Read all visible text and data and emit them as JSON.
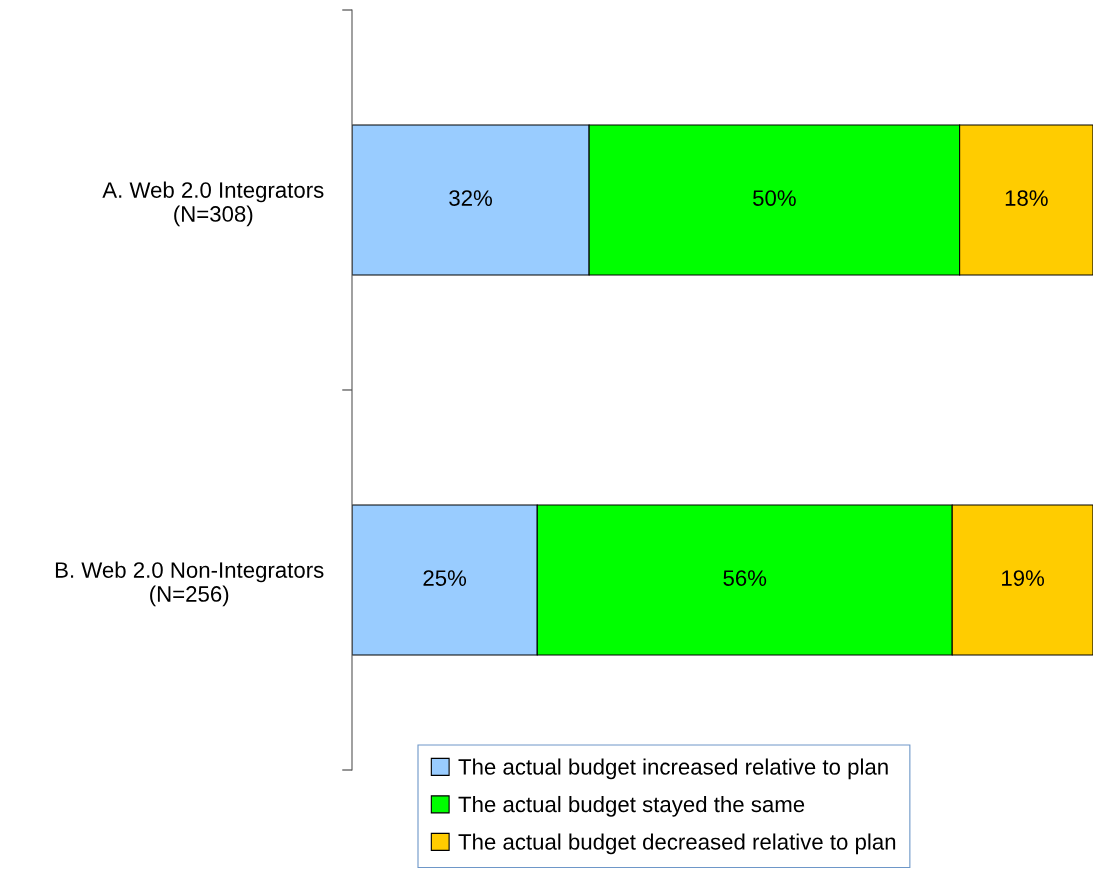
{
  "chart_data": {
    "type": "bar",
    "orientation": "horizontal",
    "stacked": true,
    "categories": [
      "A. Web 2.0 Integrators\n(N=308)",
      "B. Web 2.0 Non-Integrators\n(N=256)"
    ],
    "series": [
      {
        "name": "The actual budget increased relative to plan",
        "color": "#99ccff",
        "values": [
          32,
          25
        ],
        "value_labels": [
          "32%",
          "25%"
        ]
      },
      {
        "name": "The actual budget stayed the same",
        "color": "#00ff00",
        "values": [
          50,
          56
        ],
        "value_labels": [
          "50%",
          "56%"
        ]
      },
      {
        "name": "The actual budget decreased relative to plan",
        "color": "#ffcc00",
        "values": [
          18,
          19
        ],
        "value_labels": [
          "18%",
          "19%"
        ]
      }
    ],
    "legend": "bottom",
    "grid": false,
    "tick_labels": "y"
  }
}
